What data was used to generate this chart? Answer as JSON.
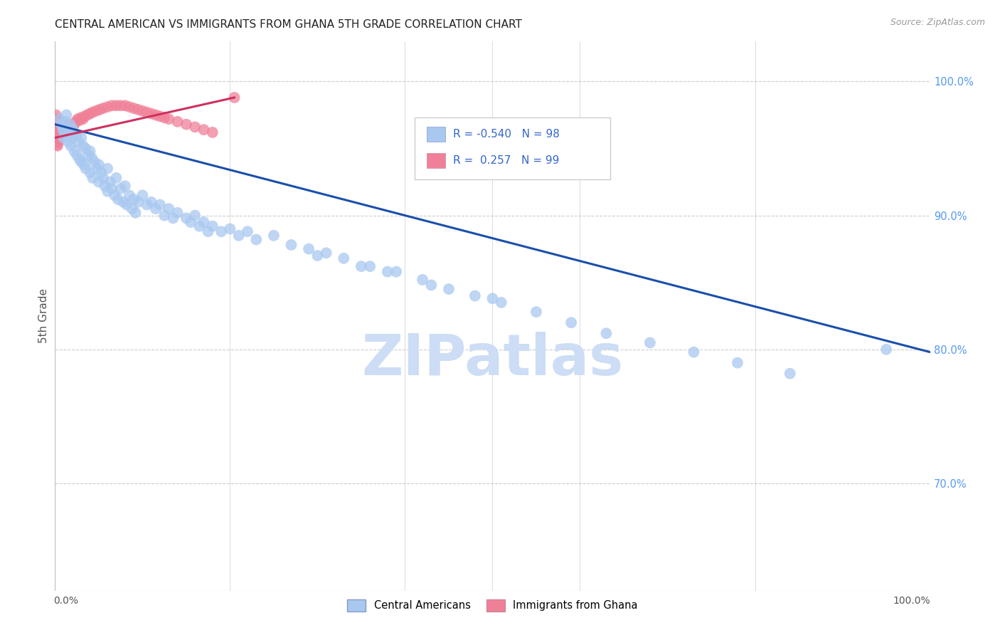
{
  "title": "CENTRAL AMERICAN VS IMMIGRANTS FROM GHANA 5TH GRADE CORRELATION CHART",
  "source": "Source: ZipAtlas.com",
  "ylabel": "5th Grade",
  "legend_blue_r": "R = -0.540",
  "legend_blue_n": "N = 98",
  "legend_pink_r": "R =  0.257",
  "legend_pink_n": "N = 99",
  "blue_color": "#a8c8f0",
  "pink_color": "#f08098",
  "blue_line_color": "#1a4faa",
  "pink_line_color": "#d03060",
  "legend_text_color": "#3366cc",
  "title_color": "#222222",
  "grid_color": "#cccccc",
  "watermark_color": "#ccddf5",
  "right_label_color": "#5599ee",
  "blue_scatter_x": [
    0.005,
    0.007,
    0.009,
    0.01,
    0.01,
    0.012,
    0.013,
    0.015,
    0.015,
    0.017,
    0.018,
    0.02,
    0.02,
    0.022,
    0.022,
    0.025,
    0.025,
    0.027,
    0.028,
    0.03,
    0.03,
    0.032,
    0.033,
    0.035,
    0.035,
    0.038,
    0.04,
    0.04,
    0.042,
    0.043,
    0.045,
    0.048,
    0.05,
    0.05,
    0.053,
    0.055,
    0.057,
    0.06,
    0.06,
    0.063,
    0.065,
    0.068,
    0.07,
    0.072,
    0.075,
    0.078,
    0.08,
    0.082,
    0.085,
    0.088,
    0.09,
    0.092,
    0.095,
    0.1,
    0.105,
    0.11,
    0.115,
    0.12,
    0.125,
    0.13,
    0.135,
    0.14,
    0.15,
    0.155,
    0.16,
    0.165,
    0.17,
    0.175,
    0.18,
    0.19,
    0.2,
    0.21,
    0.22,
    0.23,
    0.25,
    0.27,
    0.29,
    0.31,
    0.33,
    0.36,
    0.39,
    0.42,
    0.45,
    0.48,
    0.51,
    0.55,
    0.59,
    0.63,
    0.68,
    0.73,
    0.78,
    0.84,
    0.3,
    0.35,
    0.38,
    0.43,
    0.5,
    0.95
  ],
  "blue_scatter_y": [
    0.972,
    0.968,
    0.965,
    0.963,
    0.958,
    0.97,
    0.975,
    0.96,
    0.955,
    0.968,
    0.952,
    0.965,
    0.958,
    0.962,
    0.948,
    0.96,
    0.945,
    0.955,
    0.942,
    0.958,
    0.94,
    0.952,
    0.938,
    0.95,
    0.935,
    0.945,
    0.948,
    0.932,
    0.943,
    0.928,
    0.94,
    0.935,
    0.938,
    0.925,
    0.932,
    0.928,
    0.922,
    0.935,
    0.918,
    0.925,
    0.92,
    0.915,
    0.928,
    0.912,
    0.92,
    0.91,
    0.922,
    0.908,
    0.915,
    0.905,
    0.912,
    0.902,
    0.91,
    0.915,
    0.908,
    0.91,
    0.905,
    0.908,
    0.9,
    0.905,
    0.898,
    0.902,
    0.898,
    0.895,
    0.9,
    0.892,
    0.895,
    0.888,
    0.892,
    0.888,
    0.89,
    0.885,
    0.888,
    0.882,
    0.885,
    0.878,
    0.875,
    0.872,
    0.868,
    0.862,
    0.858,
    0.852,
    0.845,
    0.84,
    0.835,
    0.828,
    0.82,
    0.812,
    0.805,
    0.798,
    0.79,
    0.782,
    0.87,
    0.862,
    0.858,
    0.848,
    0.838,
    0.8
  ],
  "pink_scatter_x": [
    0.001,
    0.001,
    0.001,
    0.001,
    0.001,
    0.001,
    0.001,
    0.002,
    0.002,
    0.002,
    0.002,
    0.002,
    0.002,
    0.002,
    0.002,
    0.003,
    0.003,
    0.003,
    0.003,
    0.003,
    0.003,
    0.003,
    0.003,
    0.004,
    0.004,
    0.004,
    0.004,
    0.004,
    0.005,
    0.005,
    0.005,
    0.005,
    0.005,
    0.005,
    0.006,
    0.006,
    0.006,
    0.006,
    0.007,
    0.007,
    0.007,
    0.007,
    0.008,
    0.008,
    0.008,
    0.009,
    0.009,
    0.01,
    0.01,
    0.01,
    0.011,
    0.011,
    0.012,
    0.012,
    0.013,
    0.013,
    0.014,
    0.015,
    0.015,
    0.016,
    0.017,
    0.018,
    0.019,
    0.02,
    0.021,
    0.022,
    0.024,
    0.026,
    0.028,
    0.03,
    0.032,
    0.034,
    0.037,
    0.04,
    0.043,
    0.047,
    0.051,
    0.055,
    0.06,
    0.065,
    0.07,
    0.075,
    0.08,
    0.085,
    0.09,
    0.095,
    0.1,
    0.105,
    0.11,
    0.115,
    0.12,
    0.125,
    0.13,
    0.14,
    0.15,
    0.16,
    0.17,
    0.18,
    0.205
  ],
  "pink_scatter_y": [
    0.975,
    0.972,
    0.97,
    0.968,
    0.965,
    0.963,
    0.96,
    0.972,
    0.968,
    0.965,
    0.963,
    0.96,
    0.957,
    0.955,
    0.953,
    0.97,
    0.968,
    0.965,
    0.962,
    0.96,
    0.957,
    0.955,
    0.952,
    0.968,
    0.965,
    0.962,
    0.96,
    0.957,
    0.97,
    0.967,
    0.964,
    0.962,
    0.959,
    0.956,
    0.968,
    0.965,
    0.962,
    0.96,
    0.968,
    0.965,
    0.962,
    0.96,
    0.967,
    0.964,
    0.961,
    0.966,
    0.963,
    0.968,
    0.965,
    0.962,
    0.966,
    0.963,
    0.967,
    0.964,
    0.966,
    0.963,
    0.965,
    0.968,
    0.965,
    0.966,
    0.965,
    0.964,
    0.966,
    0.968,
    0.967,
    0.968,
    0.97,
    0.972,
    0.971,
    0.973,
    0.972,
    0.974,
    0.975,
    0.976,
    0.977,
    0.978,
    0.979,
    0.98,
    0.981,
    0.982,
    0.982,
    0.982,
    0.982,
    0.981,
    0.98,
    0.979,
    0.978,
    0.977,
    0.976,
    0.975,
    0.974,
    0.973,
    0.972,
    0.97,
    0.968,
    0.966,
    0.964,
    0.962,
    0.988
  ],
  "blue_trendline_x": [
    0.0,
    1.0
  ],
  "blue_trendline_y": [
    0.968,
    0.798
  ],
  "pink_trendline_x": [
    0.0,
    0.205
  ],
  "pink_trendline_y": [
    0.958,
    0.988
  ],
  "xlim": [
    0.0,
    1.0
  ],
  "ylim": [
    0.62,
    1.03
  ],
  "ytick_right_vals": [
    1.0,
    0.9,
    0.8,
    0.7
  ],
  "ytick_right_labels": [
    "100.0%",
    "90.0%",
    "80.0%",
    "70.0%"
  ],
  "dpi": 100,
  "figsize": [
    14.06,
    8.92
  ]
}
